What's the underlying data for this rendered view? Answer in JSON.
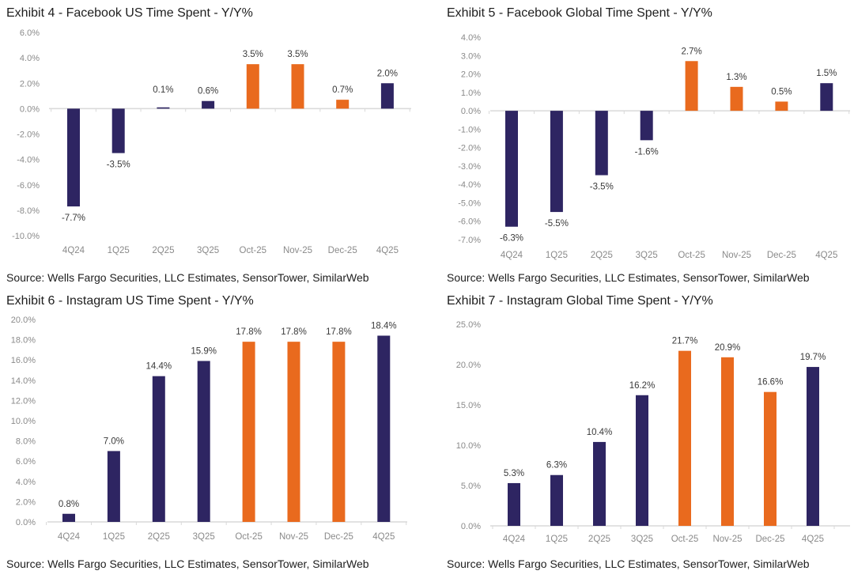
{
  "colors": {
    "quarter": "#2e2562",
    "month": "#e96a1e"
  },
  "chart_data": [
    {
      "type": "bar",
      "title": "Exhibit 4 - Facebook US Time Spent - Y/Y%",
      "source": "Source: Wells Fargo Securities, LLC Estimates, SensorTower, SimilarWeb",
      "categories": [
        "4Q24",
        "1Q25",
        "2Q25",
        "3Q25",
        "Oct-25",
        "Nov-25",
        "Dec-25",
        "4Q25"
      ],
      "values": [
        -7.7,
        -3.5,
        0.1,
        0.6,
        3.5,
        3.5,
        0.7,
        2.0
      ],
      "data_labels": [
        "-7.7%",
        "-3.5%",
        "0.1%",
        "0.6%",
        "3.5%",
        "3.5%",
        "0.7%",
        "2.0%"
      ],
      "bar_colors": [
        "#2e2562",
        "#2e2562",
        "#2e2562",
        "#2e2562",
        "#e96a1e",
        "#e96a1e",
        "#e96a1e",
        "#2e2562"
      ],
      "yticks": [
        "6.0%",
        "4.0%",
        "2.0%",
        "0.0%",
        "-2.0%",
        "-4.0%",
        "-6.0%",
        "-8.0%",
        "-10.0%"
      ],
      "ylim": [
        -10,
        6
      ],
      "grid": false
    },
    {
      "type": "bar",
      "title": "Exhibit 5 - Facebook Global Time Spent - Y/Y%",
      "source": "Source: Wells Fargo Securities, LLC Estimates, SensorTower, SimilarWeb",
      "categories": [
        "4Q24",
        "1Q25",
        "2Q25",
        "3Q25",
        "Oct-25",
        "Nov-25",
        "Dec-25",
        "4Q25"
      ],
      "values": [
        -6.3,
        -5.5,
        -3.5,
        -1.6,
        2.7,
        1.3,
        0.5,
        1.5
      ],
      "data_labels": [
        "-6.3%",
        "-5.5%",
        "-3.5%",
        "-1.6%",
        "2.7%",
        "1.3%",
        "0.5%",
        "1.5%"
      ],
      "bar_colors": [
        "#2e2562",
        "#2e2562",
        "#2e2562",
        "#2e2562",
        "#e96a1e",
        "#e96a1e",
        "#e96a1e",
        "#2e2562"
      ],
      "yticks": [
        "4.0%",
        "3.0%",
        "2.0%",
        "1.0%",
        "0.0%",
        "-1.0%",
        "-2.0%",
        "-3.0%",
        "-4.0%",
        "-5.0%",
        "-6.0%",
        "-7.0%"
      ],
      "ylim": [
        -7,
        4
      ],
      "grid": false
    },
    {
      "type": "bar",
      "title": "Exhibit 6 - Instagram US Time Spent - Y/Y%",
      "source": "Source: Wells Fargo Securities, LLC Estimates, SensorTower, SimilarWeb",
      "categories": [
        "4Q24",
        "1Q25",
        "2Q25",
        "3Q25",
        "Oct-25",
        "Nov-25",
        "Dec-25",
        "4Q25"
      ],
      "values": [
        0.8,
        7.0,
        14.4,
        15.9,
        17.8,
        17.8,
        17.8,
        18.4
      ],
      "data_labels": [
        "0.8%",
        "7.0%",
        "14.4%",
        "15.9%",
        "17.8%",
        "17.8%",
        "17.8%",
        "18.4%"
      ],
      "bar_colors": [
        "#2e2562",
        "#2e2562",
        "#2e2562",
        "#2e2562",
        "#e96a1e",
        "#e96a1e",
        "#e96a1e",
        "#2e2562"
      ],
      "yticks": [
        "20.0%",
        "18.0%",
        "16.0%",
        "14.0%",
        "12.0%",
        "10.0%",
        "8.0%",
        "6.0%",
        "4.0%",
        "2.0%",
        "0.0%"
      ],
      "ylim": [
        0,
        20
      ],
      "grid": false
    },
    {
      "type": "bar",
      "title": "Exhibit 7 - Instagram Global Time Spent - Y/Y%",
      "source": "Source: Wells Fargo Securities, LLC Estimates, SensorTower, SimilarWeb",
      "categories": [
        "4Q24",
        "1Q25",
        "2Q25",
        "3Q25",
        "Oct-25",
        "Nov-25",
        "Dec-25",
        "4Q25"
      ],
      "values": [
        5.3,
        6.3,
        10.4,
        16.2,
        21.7,
        20.9,
        16.6,
        19.7
      ],
      "data_labels": [
        "5.3%",
        "6.3%",
        "10.4%",
        "16.2%",
        "21.7%",
        "20.9%",
        "16.6%",
        "19.7%"
      ],
      "bar_colors": [
        "#2e2562",
        "#2e2562",
        "#2e2562",
        "#2e2562",
        "#e96a1e",
        "#e96a1e",
        "#e96a1e",
        "#2e2562"
      ],
      "yticks": [
        "25.0%",
        "20.0%",
        "15.0%",
        "10.0%",
        "5.0%",
        "0.0%"
      ],
      "ylim": [
        0,
        25
      ],
      "grid": false
    }
  ]
}
